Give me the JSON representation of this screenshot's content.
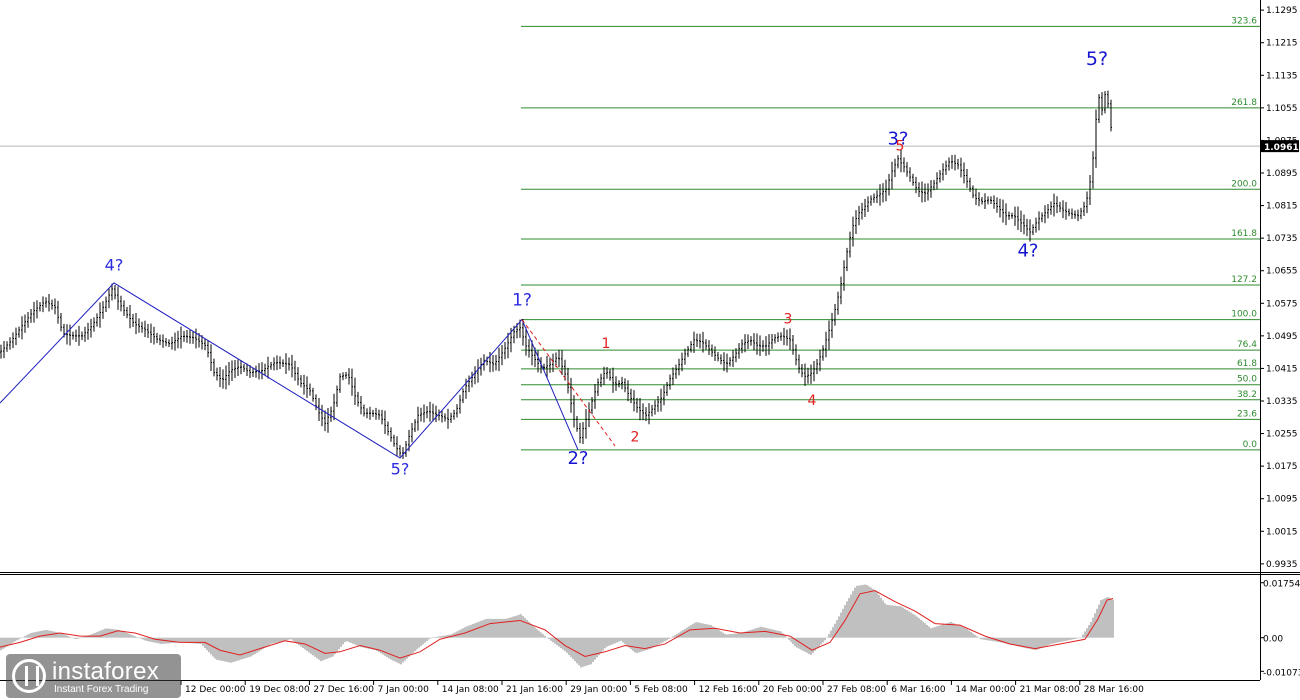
{
  "chart_data": [
    {
      "type": "line",
      "instrument_note": "price chart with Elliott wave marks and Fibonacci grid",
      "ylim": [
        0.9915,
        1.1315
      ],
      "y_ticks": [
        1.1295,
        1.1215,
        1.1135,
        1.1055,
        1.0975,
        1.0895,
        1.0815,
        1.0735,
        1.0655,
        1.0575,
        1.0495,
        1.0415,
        1.0335,
        1.0255,
        1.0175,
        1.0095,
        1.0015,
        0.9935
      ],
      "y_tick_labels": [
        "1.1295",
        "1.1215",
        "1.1135",
        "1.1055",
        "1.0975",
        "1.0895",
        "1.0815",
        "1.0735",
        "1.0655",
        "1.0575",
        "1.0495",
        "1.0415",
        "1.0335",
        "1.0255",
        "1.0175",
        "1.0095",
        "1.0015",
        "0.9935"
      ],
      "x_tick_labels": [
        "12 Dec 00:00",
        "19 Dec 08:00",
        "27 Dec 16:00",
        "7 Jan 00:00",
        "14 Jan 08:00",
        "21 Jan 16:00",
        "29 Jan 00:00",
        "5 Feb 08:00",
        "12 Feb 16:00",
        "20 Feb 00:00",
        "27 Feb 08:00",
        "6 Mar 16:00",
        "14 Mar 00:00",
        "21 Mar 08:00",
        "28 Mar 16:00"
      ],
      "current_price": "1.0961",
      "price_path": [
        [
          0,
          1.0455
        ],
        [
          12,
          1.0485
        ],
        [
          22,
          1.052
        ],
        [
          33,
          1.0555
        ],
        [
          45,
          1.058
        ],
        [
          55,
          1.0565
        ],
        [
          63,
          1.05
        ],
        [
          72,
          1.0495
        ],
        [
          82,
          1.0495
        ],
        [
          92,
          1.052
        ],
        [
          102,
          1.056
        ],
        [
          112,
          1.061
        ],
        [
          118,
          1.058
        ],
        [
          126,
          1.055
        ],
        [
          134,
          1.0525
        ],
        [
          145,
          1.051
        ],
        [
          158,
          1.0485
        ],
        [
          170,
          1.0475
        ],
        [
          182,
          1.0495
        ],
        [
          194,
          1.049
        ],
        [
          206,
          1.047
        ],
        [
          214,
          1.0405
        ],
        [
          222,
          1.0385
        ],
        [
          230,
          1.041
        ],
        [
          240,
          1.042
        ],
        [
          250,
          1.0405
        ],
        [
          262,
          1.041
        ],
        [
          275,
          1.043
        ],
        [
          290,
          1.0425
        ],
        [
          300,
          1.038
        ],
        [
          310,
          1.036
        ],
        [
          318,
          1.031
        ],
        [
          325,
          1.028
        ],
        [
          333,
          1.032
        ],
        [
          340,
          1.0395
        ],
        [
          348,
          1.04
        ],
        [
          356,
          1.034
        ],
        [
          364,
          1.0305
        ],
        [
          372,
          1.0305
        ],
        [
          380,
          1.03
        ],
        [
          388,
          1.026
        ],
        [
          395,
          1.0225
        ],
        [
          402,
          1.02
        ],
        [
          410,
          1.0255
        ],
        [
          418,
          1.03
        ],
        [
          428,
          1.031
        ],
        [
          438,
          1.03
        ],
        [
          448,
          1.029
        ],
        [
          456,
          1.031
        ],
        [
          464,
          1.0365
        ],
        [
          474,
          1.04
        ],
        [
          484,
          1.0435
        ],
        [
          494,
          1.0425
        ],
        [
          504,
          1.046
        ],
        [
          514,
          1.0505
        ],
        [
          520,
          1.0515
        ],
        [
          526,
          1.047
        ],
        [
          534,
          1.044
        ],
        [
          542,
          1.0415
        ],
        [
          550,
          1.0425
        ],
        [
          558,
          1.0445
        ],
        [
          566,
          1.0395
        ],
        [
          574,
          1.029
        ],
        [
          580,
          1.0245
        ],
        [
          586,
          1.029
        ],
        [
          592,
          1.0335
        ],
        [
          598,
          1.038
        ],
        [
          606,
          1.041
        ],
        [
          614,
          1.0375
        ],
        [
          622,
          1.038
        ],
        [
          630,
          1.0345
        ],
        [
          638,
          1.0315
        ],
        [
          646,
          1.03
        ],
        [
          654,
          1.032
        ],
        [
          662,
          1.0345
        ],
        [
          670,
          1.039
        ],
        [
          678,
          1.042
        ],
        [
          686,
          1.0455
        ],
        [
          694,
          1.0485
        ],
        [
          702,
          1.048
        ],
        [
          710,
          1.046
        ],
        [
          718,
          1.044
        ],
        [
          726,
          1.0425
        ],
        [
          734,
          1.0445
        ],
        [
          742,
          1.0475
        ],
        [
          750,
          1.0485
        ],
        [
          758,
          1.047
        ],
        [
          766,
          1.047
        ],
        [
          774,
          1.049
        ],
        [
          782,
          1.0495
        ],
        [
          790,
          1.0485
        ],
        [
          798,
          1.042
        ],
        [
          804,
          1.0395
        ],
        [
          810,
          1.04
        ],
        [
          816,
          1.042
        ],
        [
          822,
          1.0455
        ],
        [
          828,
          1.05
        ],
        [
          834,
          1.055
        ],
        [
          840,
          1.061
        ],
        [
          846,
          1.069
        ],
        [
          852,
          1.076
        ],
        [
          858,
          1.0795
        ],
        [
          864,
          1.081
        ],
        [
          870,
          1.083
        ],
        [
          878,
          1.084
        ],
        [
          886,
          1.0855
        ],
        [
          892,
          1.09
        ],
        [
          898,
          1.093
        ],
        [
          904,
          1.091
        ],
        [
          910,
          1.0885
        ],
        [
          918,
          1.085
        ],
        [
          926,
          1.0845
        ],
        [
          934,
          1.087
        ],
        [
          942,
          1.09
        ],
        [
          950,
          1.0925
        ],
        [
          958,
          1.0915
        ],
        [
          966,
          1.088
        ],
        [
          974,
          1.0835
        ],
        [
          982,
          1.0825
        ],
        [
          990,
          1.083
        ],
        [
          998,
          1.081
        ],
        [
          1006,
          1.079
        ],
        [
          1014,
          1.079
        ],
        [
          1022,
          1.077
        ],
        [
          1030,
          1.075
        ],
        [
          1038,
          1.078
        ],
        [
          1046,
          1.08
        ],
        [
          1054,
          1.082
        ],
        [
          1062,
          1.0805
        ],
        [
          1070,
          1.0795
        ],
        [
          1078,
          1.079
        ],
        [
          1086,
          1.082
        ],
        [
          1092,
          1.09
        ],
        [
          1098,
          1.109
        ],
        [
          1102,
          1.105
        ],
        [
          1106,
          1.11
        ],
        [
          1110,
          1.103
        ],
        [
          1113,
          1.0961
        ]
      ],
      "wave_lines": [
        [
          [
            0,
            1.033
          ],
          [
            114,
            1.0625
          ],
          [
            400,
            1.0195
          ],
          [
            522,
            1.0535
          ],
          [
            578,
            1.0215
          ]
        ]
      ],
      "corrective_dashed_line": [
        [
          522,
          1.0535
        ],
        [
          615,
          1.0225
        ]
      ],
      "fibonacci_levels": [
        {
          "label": "323.6",
          "price": 1.1255
        },
        {
          "label": "261.8",
          "price": 1.1055
        },
        {
          "label": "200.0",
          "price": 1.0855
        },
        {
          "label": "161.8",
          "price": 1.0733
        },
        {
          "label": "127.2",
          "price": 1.062
        },
        {
          "label": "100.0",
          "price": 1.0535
        },
        {
          "label": "76.4",
          "price": 1.046
        },
        {
          "label": "61.8",
          "price": 1.0414
        },
        {
          "label": "50.0",
          "price": 1.0375
        },
        {
          "label": "38.2",
          "price": 1.0338
        },
        {
          "label": "23.6",
          "price": 1.029
        },
        {
          "label": "0.0",
          "price": 1.0215
        }
      ],
      "wave_labels": [
        {
          "text": "4?",
          "x": 114,
          "price": 1.0655,
          "color": "#2b2be0",
          "size": 16
        },
        {
          "text": "5?",
          "x": 400,
          "price": 1.0155,
          "color": "#2b2be0",
          "size": 16
        },
        {
          "text": "1?",
          "x": 522,
          "price": 1.057,
          "color": "#2b2be0",
          "size": 17
        },
        {
          "text": "2?",
          "x": 578,
          "price": 1.018,
          "color": "#1515d0",
          "size": 18
        },
        {
          "text": "3?",
          "x": 898,
          "price": 1.0965,
          "color": "#1515d0",
          "size": 18
        },
        {
          "text": "4?",
          "x": 1028,
          "price": 1.069,
          "color": "#1515d0",
          "size": 18
        },
        {
          "text": "5?",
          "x": 1097,
          "price": 1.116,
          "color": "#1515d0",
          "size": 19
        },
        {
          "text": "1",
          "x": 606,
          "price": 1.0465,
          "color": "#e02020",
          "size": 14
        },
        {
          "text": "2",
          "x": 635,
          "price": 1.0235,
          "color": "#e02020",
          "size": 14
        },
        {
          "text": "3",
          "x": 788,
          "price": 1.0525,
          "color": "#e02020",
          "size": 14
        },
        {
          "text": "4",
          "x": 812,
          "price": 1.0325,
          "color": "#e02020",
          "size": 14
        },
        {
          "text": "5",
          "x": 900,
          "price": 1.095,
          "color": "#e02020",
          "size": 14
        }
      ]
    },
    {
      "type": "area",
      "indicator_note": "histogram oscillator with signal line",
      "ylim": [
        -0.0135,
        0.02
      ],
      "y_ticks": [
        0.01754,
        0.0,
        -0.01073
      ],
      "y_tick_labels": [
        "0.01754",
        "0.00",
        "-0.01073"
      ],
      "histogram_path": [
        [
          0,
          -0.004
        ],
        [
          15,
          -0.001
        ],
        [
          30,
          0.0015
        ],
        [
          45,
          0.0025
        ],
        [
          60,
          0.0015
        ],
        [
          75,
          -0.0005
        ],
        [
          90,
          0.001
        ],
        [
          105,
          0.003
        ],
        [
          118,
          0.0025
        ],
        [
          130,
          0.001
        ],
        [
          145,
          -0.001
        ],
        [
          160,
          -0.002
        ],
        [
          180,
          -0.0015
        ],
        [
          200,
          -0.002
        ],
        [
          215,
          -0.007
        ],
        [
          230,
          -0.008
        ],
        [
          250,
          -0.006
        ],
        [
          270,
          -0.002
        ],
        [
          290,
          -0.0005
        ],
        [
          305,
          -0.004
        ],
        [
          320,
          -0.0075
        ],
        [
          332,
          -0.006
        ],
        [
          345,
          -0.001
        ],
        [
          360,
          -0.003
        ],
        [
          375,
          -0.004
        ],
        [
          390,
          -0.007
        ],
        [
          400,
          -0.0085
        ],
        [
          415,
          -0.004
        ],
        [
          430,
          0.0
        ],
        [
          450,
          0.001
        ],
        [
          465,
          0.0035
        ],
        [
          485,
          0.006
        ],
        [
          505,
          0.006
        ],
        [
          520,
          0.0075
        ],
        [
          535,
          0.003
        ],
        [
          550,
          -0.001
        ],
        [
          565,
          -0.0045
        ],
        [
          580,
          -0.0095
        ],
        [
          590,
          -0.0085
        ],
        [
          605,
          -0.003
        ],
        [
          620,
          -0.001
        ],
        [
          635,
          -0.005
        ],
        [
          650,
          -0.0035
        ],
        [
          665,
          -0.001
        ],
        [
          680,
          0.002
        ],
        [
          695,
          0.005
        ],
        [
          710,
          0.004
        ],
        [
          725,
          0.001
        ],
        [
          740,
          0.0015
        ],
        [
          760,
          0.0035
        ],
        [
          780,
          0.002
        ],
        [
          795,
          -0.003
        ],
        [
          810,
          -0.0055
        ],
        [
          825,
          -0.0005
        ],
        [
          835,
          0.005
        ],
        [
          845,
          0.011
        ],
        [
          855,
          0.0165
        ],
        [
          865,
          0.017
        ],
        [
          875,
          0.015
        ],
        [
          885,
          0.0105
        ],
        [
          900,
          0.01
        ],
        [
          915,
          0.007
        ],
        [
          930,
          0.003
        ],
        [
          950,
          0.005
        ],
        [
          965,
          0.003
        ],
        [
          980,
          -0.0005
        ],
        [
          1000,
          -0.0015
        ],
        [
          1020,
          -0.003
        ],
        [
          1035,
          -0.004
        ],
        [
          1050,
          -0.002
        ],
        [
          1065,
          -0.001
        ],
        [
          1080,
          0.0
        ],
        [
          1090,
          0.005
        ],
        [
          1100,
          0.012
        ],
        [
          1107,
          0.013
        ],
        [
          1113,
          0.012
        ]
      ],
      "signal_path": [
        [
          0,
          -0.003
        ],
        [
          20,
          -0.0015
        ],
        [
          40,
          0.0005
        ],
        [
          60,
          0.0015
        ],
        [
          80,
          0.0005
        ],
        [
          100,
          0.0005
        ],
        [
          118,
          0.0022
        ],
        [
          135,
          0.0015
        ],
        [
          155,
          -0.0005
        ],
        [
          180,
          -0.0015
        ],
        [
          205,
          -0.0015
        ],
        [
          220,
          -0.004
        ],
        [
          240,
          -0.0055
        ],
        [
          260,
          -0.0035
        ],
        [
          285,
          -0.001
        ],
        [
          305,
          -0.002
        ],
        [
          325,
          -0.005
        ],
        [
          340,
          -0.0045
        ],
        [
          360,
          -0.0025
        ],
        [
          380,
          -0.004
        ],
        [
          400,
          -0.0065
        ],
        [
          420,
          -0.0045
        ],
        [
          440,
          -0.0005
        ],
        [
          465,
          0.0015
        ],
        [
          490,
          0.0045
        ],
        [
          520,
          0.0055
        ],
        [
          545,
          0.0025
        ],
        [
          565,
          -0.0025
        ],
        [
          585,
          -0.006
        ],
        [
          605,
          -0.0045
        ],
        [
          625,
          -0.0025
        ],
        [
          645,
          -0.0035
        ],
        [
          665,
          -0.002
        ],
        [
          690,
          0.0025
        ],
        [
          715,
          0.003
        ],
        [
          740,
          0.0015
        ],
        [
          765,
          0.002
        ],
        [
          790,
          0.0005
        ],
        [
          812,
          -0.004
        ],
        [
          830,
          -0.0015
        ],
        [
          845,
          0.0055
        ],
        [
          860,
          0.014
        ],
        [
          875,
          0.015
        ],
        [
          895,
          0.0115
        ],
        [
          915,
          0.0085
        ],
        [
          935,
          0.0045
        ],
        [
          960,
          0.004
        ],
        [
          985,
          0.0005
        ],
        [
          1010,
          -0.002
        ],
        [
          1035,
          -0.0035
        ],
        [
          1060,
          -0.002
        ],
        [
          1085,
          -0.0005
        ],
        [
          1098,
          0.006
        ],
        [
          1107,
          0.012
        ],
        [
          1113,
          0.0125
        ]
      ]
    }
  ],
  "colors": {
    "candles": "#000000",
    "wave_line": "#2020c0",
    "fib_line": "#2e8b2e",
    "dashed": "#e02020",
    "histogram": "#c0c0c0",
    "signal": "#e02020",
    "price_marker_bg": "#000000"
  },
  "branding": {
    "name": "instaforex",
    "tagline": "Instant Forex Trading"
  }
}
